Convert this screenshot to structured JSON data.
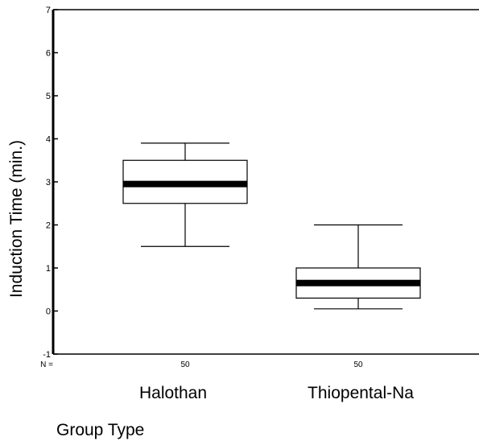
{
  "chart_data": {
    "type": "box",
    "ylabel": "Induction Time (min.)",
    "xlabel": "Group Type",
    "ylim": [
      -1,
      7
    ],
    "yticks": [
      "-1",
      "0",
      "1",
      "2",
      "3",
      "4",
      "5",
      "6",
      "7"
    ],
    "n_prefix": "N =",
    "categories": [
      "Halothan",
      "Thiopental-Na"
    ],
    "n": [
      "50",
      "50"
    ],
    "series": [
      {
        "category": "Halothan",
        "min": 1.5,
        "q1": 2.5,
        "median": 2.95,
        "q3": 3.5,
        "max": 3.9
      },
      {
        "category": "Thiopental-Na",
        "min": 0.05,
        "q1": 0.3,
        "median": 0.65,
        "q3": 1.0,
        "max": 2.0
      }
    ],
    "colors": {
      "box_fill": "#ffffff",
      "stroke": "#000000",
      "median": "#000000"
    }
  }
}
